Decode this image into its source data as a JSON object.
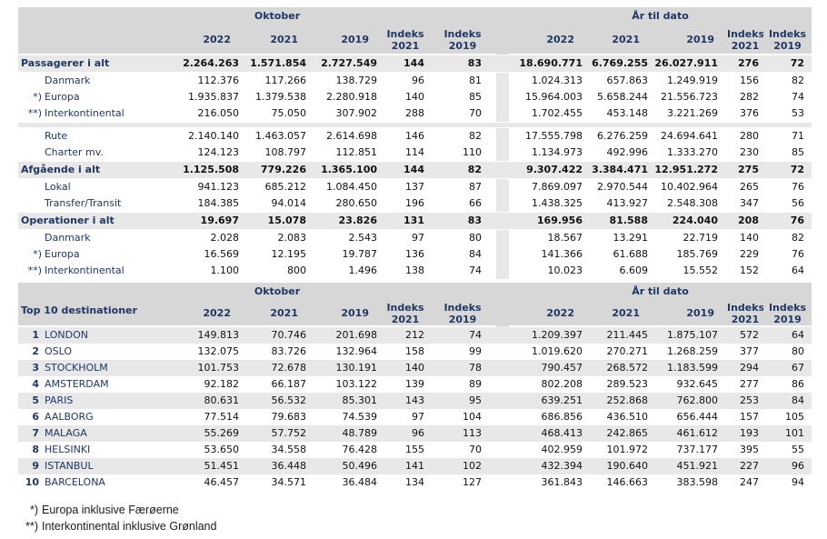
{
  "columns": {
    "period_oktober": "Oktober",
    "period_ytd": "År til dato",
    "year_2022": "2022",
    "year_2021": "2021",
    "year_2019": "2019",
    "indeks": "Indeks"
  },
  "table1": {
    "rows": [
      {
        "type": "total",
        "label": "Passagerer i alt",
        "okt": [
          "2.264.263",
          "1.571.854",
          "2.727.549",
          "144",
          "83"
        ],
        "ytd": [
          "18.690.771",
          "6.769.255",
          "26.027.911",
          "276",
          "72"
        ]
      },
      {
        "type": "sub",
        "marker": "",
        "label": "Danmark",
        "okt": [
          "112.376",
          "117.266",
          "138.729",
          "96",
          "81"
        ],
        "ytd": [
          "1.024.313",
          "657.863",
          "1.249.919",
          "156",
          "82"
        ]
      },
      {
        "type": "sub",
        "marker": "*)",
        "label": "Europa",
        "okt": [
          "1.935.837",
          "1.379.538",
          "2.280.918",
          "140",
          "85"
        ],
        "ytd": [
          "15.964.003",
          "5.658.244",
          "21.556.723",
          "282",
          "74"
        ]
      },
      {
        "type": "sub",
        "marker": "**)",
        "label": "Interkontinental",
        "okt": [
          "216.050",
          "75.050",
          "307.902",
          "288",
          "70"
        ],
        "ytd": [
          "1.702.455",
          "453.148",
          "3.221.269",
          "376",
          "53"
        ]
      },
      {
        "type": "separator"
      },
      {
        "type": "sub",
        "marker": "",
        "label": "Rute",
        "okt": [
          "2.140.140",
          "1.463.057",
          "2.614.698",
          "146",
          "82"
        ],
        "ytd": [
          "17.555.798",
          "6.276.259",
          "24.694.641",
          "280",
          "71"
        ]
      },
      {
        "type": "sub",
        "marker": "",
        "label": "Charter mv.",
        "okt": [
          "124.123",
          "108.797",
          "112.851",
          "114",
          "110"
        ],
        "ytd": [
          "1.134.973",
          "492.996",
          "1.333.270",
          "230",
          "85"
        ]
      },
      {
        "type": "total",
        "label": "Afgående i alt",
        "okt": [
          "1.125.508",
          "779.226",
          "1.365.100",
          "144",
          "82"
        ],
        "ytd": [
          "9.307.422",
          "3.384.471",
          "12.951.272",
          "275",
          "72"
        ]
      },
      {
        "type": "sub",
        "marker": "",
        "label": "Lokal",
        "okt": [
          "941.123",
          "685.212",
          "1.084.450",
          "137",
          "87"
        ],
        "ytd": [
          "7.869.097",
          "2.970.544",
          "10.402.964",
          "265",
          "76"
        ]
      },
      {
        "type": "sub",
        "marker": "",
        "label": "Transfer/Transit",
        "okt": [
          "184.385",
          "94.014",
          "280.650",
          "196",
          "66"
        ],
        "ytd": [
          "1.438.325",
          "413.927",
          "2.548.308",
          "347",
          "56"
        ]
      },
      {
        "type": "total",
        "label": "Operationer i alt",
        "okt": [
          "19.697",
          "15.078",
          "23.826",
          "131",
          "83"
        ],
        "ytd": [
          "169.956",
          "81.588",
          "224.040",
          "208",
          "76"
        ]
      },
      {
        "type": "sub",
        "marker": "",
        "label": "Danmark",
        "okt": [
          "2.028",
          "2.083",
          "2.543",
          "97",
          "80"
        ],
        "ytd": [
          "18.567",
          "13.291",
          "22.719",
          "140",
          "82"
        ]
      },
      {
        "type": "sub",
        "marker": "*)",
        "label": "Europa",
        "okt": [
          "16.569",
          "12.195",
          "19.787",
          "136",
          "84"
        ],
        "ytd": [
          "141.366",
          "61.688",
          "185.769",
          "229",
          "76"
        ]
      },
      {
        "type": "sub",
        "marker": "**)",
        "label": "Interkontinental",
        "okt": [
          "1.100",
          "800",
          "1.496",
          "138",
          "74"
        ],
        "ytd": [
          "10.023",
          "6.609",
          "15.552",
          "152",
          "64"
        ]
      }
    ]
  },
  "table2": {
    "title": "Top 10 destinationer",
    "rows": [
      {
        "rank": "1",
        "name": "LONDON",
        "okt": [
          "149.813",
          "70.746",
          "201.698",
          "212",
          "74"
        ],
        "ytd": [
          "1.209.397",
          "211.445",
          "1.875.107",
          "572",
          "64"
        ]
      },
      {
        "rank": "2",
        "name": "OSLO",
        "okt": [
          "132.075",
          "83.726",
          "132.964",
          "158",
          "99"
        ],
        "ytd": [
          "1.019.620",
          "270.271",
          "1.268.259",
          "377",
          "80"
        ]
      },
      {
        "rank": "3",
        "name": "STOCKHOLM",
        "okt": [
          "101.753",
          "72.678",
          "130.191",
          "140",
          "78"
        ],
        "ytd": [
          "790.457",
          "268.572",
          "1.183.599",
          "294",
          "67"
        ]
      },
      {
        "rank": "4",
        "name": "AMSTERDAM",
        "okt": [
          "92.182",
          "66.187",
          "103.122",
          "139",
          "89"
        ],
        "ytd": [
          "802.208",
          "289.523",
          "932.645",
          "277",
          "86"
        ]
      },
      {
        "rank": "5",
        "name": "PARIS",
        "okt": [
          "80.631",
          "56.532",
          "85.301",
          "143",
          "95"
        ],
        "ytd": [
          "639.251",
          "252.868",
          "762.800",
          "253",
          "84"
        ]
      },
      {
        "rank": "6",
        "name": "AALBORG",
        "okt": [
          "77.514",
          "79.683",
          "74.539",
          "97",
          "104"
        ],
        "ytd": [
          "686.856",
          "436.510",
          "656.444",
          "157",
          "105"
        ]
      },
      {
        "rank": "7",
        "name": "MALAGA",
        "okt": [
          "55.269",
          "57.752",
          "48.789",
          "96",
          "113"
        ],
        "ytd": [
          "468.413",
          "242.865",
          "461.612",
          "193",
          "101"
        ]
      },
      {
        "rank": "8",
        "name": "HELSINKI",
        "okt": [
          "53.650",
          "34.558",
          "76.428",
          "155",
          "70"
        ],
        "ytd": [
          "402.959",
          "101.972",
          "737.177",
          "395",
          "55"
        ]
      },
      {
        "rank": "9",
        "name": "ISTANBUL",
        "okt": [
          "51.451",
          "36.448",
          "50.496",
          "141",
          "102"
        ],
        "ytd": [
          "432.394",
          "190.640",
          "451.921",
          "227",
          "96"
        ]
      },
      {
        "rank": "10",
        "name": "BARCELONA",
        "okt": [
          "46.457",
          "34.571",
          "36.484",
          "134",
          "127"
        ],
        "ytd": [
          "361.843",
          "146.663",
          "383.598",
          "247",
          "94"
        ]
      }
    ]
  },
  "footnotes": [
    {
      "marker": "*)",
      "text": "Europa inklusive Færøerne"
    },
    {
      "marker": "**)",
      "text": "Interkontinental inklusive Grønland"
    }
  ],
  "colors": {
    "header-gray": "#d7d7d7",
    "band-gray": "#e8e8e8",
    "navy": "#1f3864",
    "num": "#111111"
  }
}
